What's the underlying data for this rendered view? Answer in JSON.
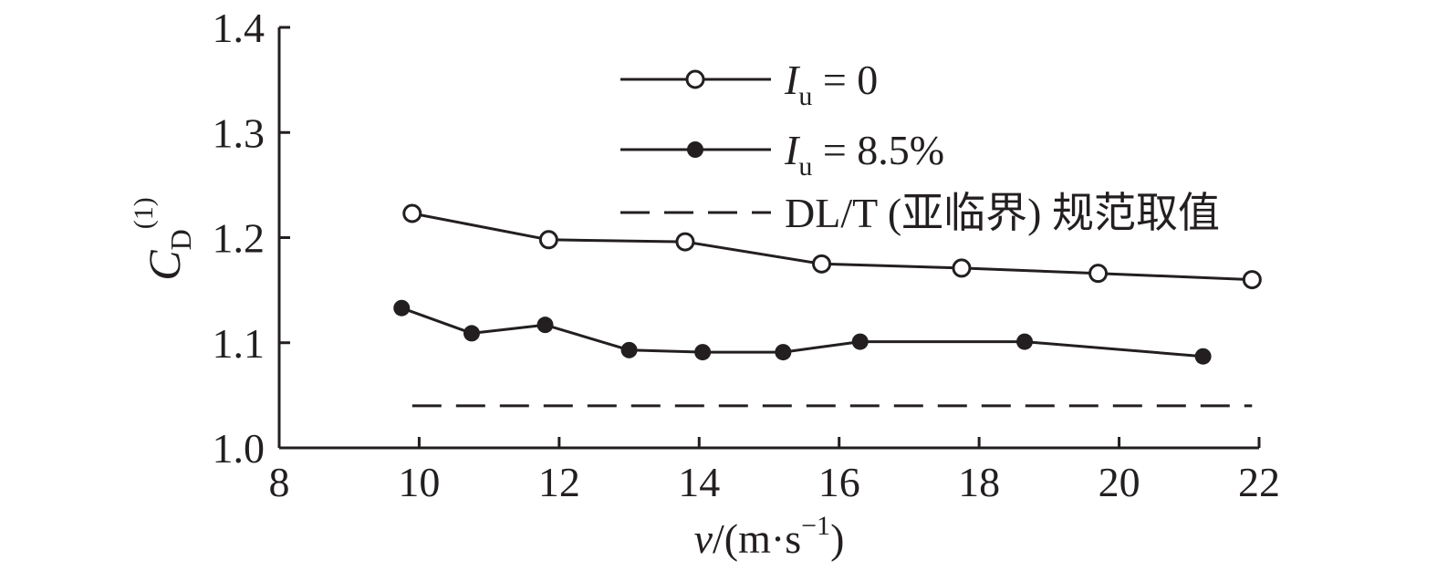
{
  "chart_data": {
    "type": "line",
    "xlabel": {
      "var": "v",
      "unit_prefix": "/(m·s",
      "unit_sup": "−1",
      "unit_suffix": ")"
    },
    "ylabel": {
      "main": "C",
      "sub": "D",
      "sup": "(1)"
    },
    "xlim": [
      8,
      22
    ],
    "ylim": [
      1.0,
      1.4
    ],
    "x_ticks": [
      "8",
      "10",
      "12",
      "14",
      "16",
      "18",
      "20",
      "22"
    ],
    "y_ticks": [
      "1.0",
      "1.1",
      "1.2",
      "1.3",
      "1.4"
    ],
    "grid": false,
    "legend_position": "top-center",
    "series": [
      {
        "name": "I_u = 0",
        "label_main": "I",
        "label_sub": "u",
        "label_rest": " = 0",
        "marker": "open-circle",
        "line_style": "solid",
        "x": [
          9.9,
          11.85,
          13.8,
          15.75,
          17.75,
          19.7,
          21.9
        ],
        "y": [
          1.223,
          1.198,
          1.196,
          1.175,
          1.171,
          1.166,
          1.16
        ]
      },
      {
        "name": "I_u = 8.5%",
        "label_main": "I",
        "label_sub": "u",
        "label_rest": " = 8.5%",
        "marker": "filled-circle",
        "line_style": "solid",
        "x": [
          9.75,
          10.75,
          11.8,
          13.0,
          14.05,
          15.2,
          16.3,
          18.65,
          21.2
        ],
        "y": [
          1.133,
          1.109,
          1.117,
          1.093,
          1.091,
          1.091,
          1.101,
          1.101,
          1.087
        ]
      },
      {
        "name": "DL/T (亚临界) 规范取值",
        "label_main": "DL/T (亚临界) 规范取值",
        "marker": "none",
        "line_style": "dashed",
        "x": [
          9.9,
          21.9
        ],
        "y": [
          1.04,
          1.04
        ]
      }
    ],
    "colors": {
      "ink": "#231f20",
      "background": "#ffffff"
    }
  }
}
